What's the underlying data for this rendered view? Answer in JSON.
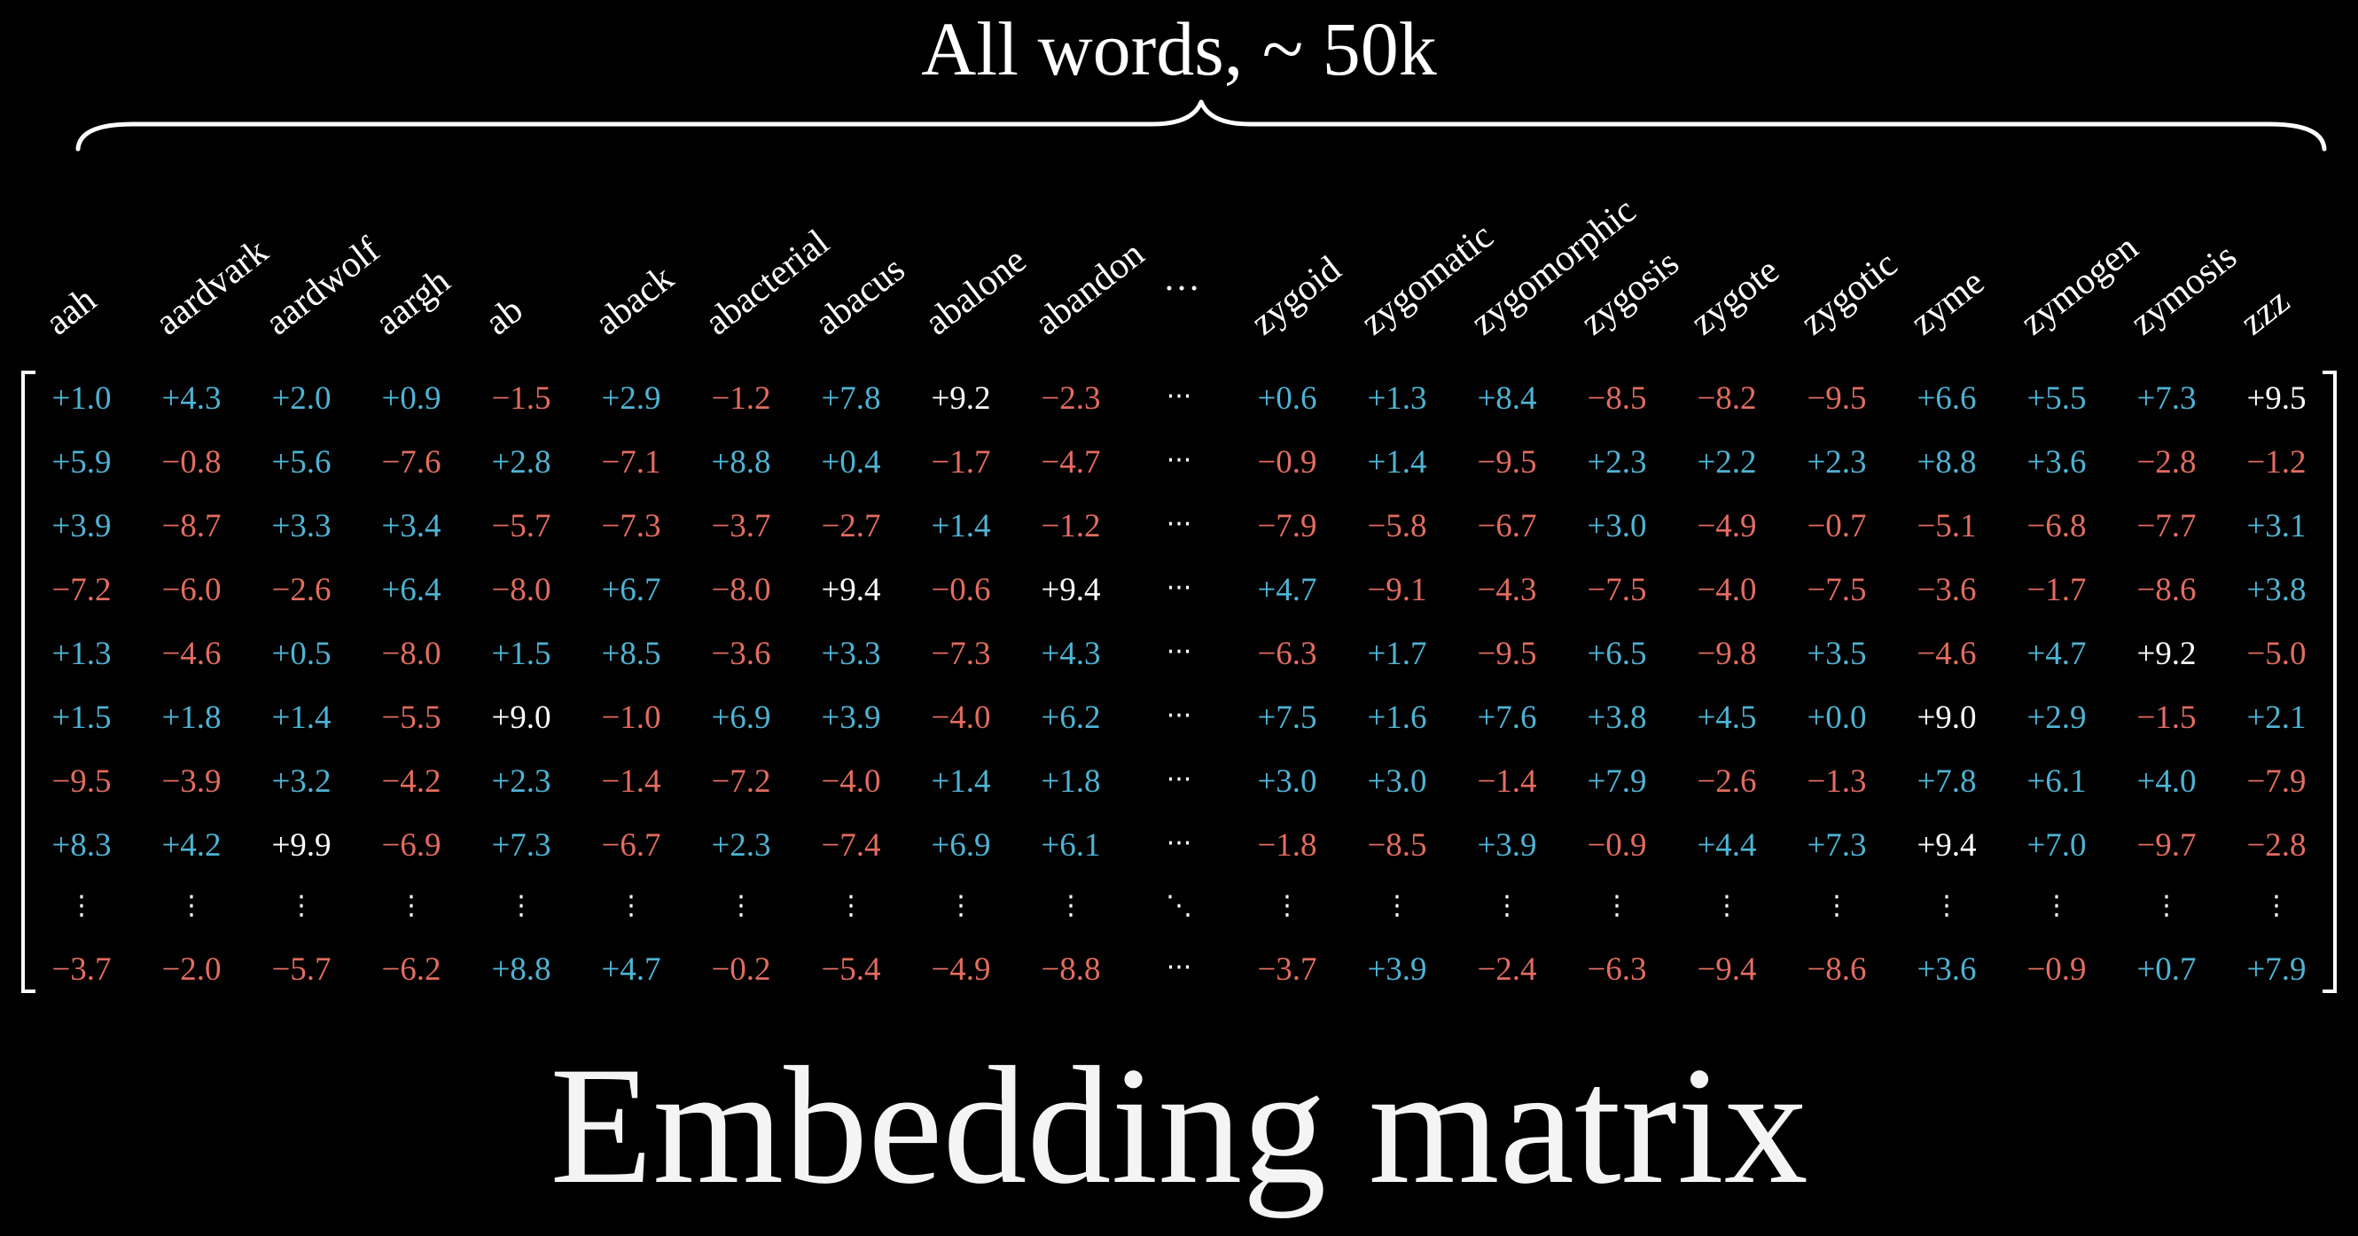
{
  "title": "All words,  ~ 50k",
  "caption": "Embedding matrix",
  "colors": {
    "positive": "#4fb3d3",
    "negative": "#e26c60",
    "neutral": "#ffffff"
  },
  "words_left": [
    "aah",
    "aardvark",
    "aardwolf",
    "aargh",
    "ab",
    "aback",
    "abacterial",
    "abacus",
    "abalone",
    "abandon"
  ],
  "header_ellipsis": "…",
  "words_right": [
    "zygoid",
    "zygomatic",
    "zygomorphic",
    "zygosis",
    "zygote",
    "zygotic",
    "zyme",
    "zymogen",
    "zymosis",
    "zzz"
  ],
  "ellipsis_symbols": {
    "horizontal": "···",
    "vertical": "⋮",
    "diagonal": "⋱"
  },
  "rows": [
    {
      "left": [
        "+1.0",
        "+4.3",
        "+2.0",
        "+0.9",
        "−1.5",
        "+2.9",
        "−1.2",
        "+7.8",
        "+9.2",
        "−2.3"
      ],
      "right": [
        "+0.6",
        "+1.3",
        "+8.4",
        "−8.5",
        "−8.2",
        "−9.5",
        "+6.6",
        "+5.5",
        "+7.3",
        "+9.5"
      ]
    },
    {
      "left": [
        "+5.9",
        "−0.8",
        "+5.6",
        "−7.6",
        "+2.8",
        "−7.1",
        "+8.8",
        "+0.4",
        "−1.7",
        "−4.7"
      ],
      "right": [
        "−0.9",
        "+1.4",
        "−9.5",
        "+2.3",
        "+2.2",
        "+2.3",
        "+8.8",
        "+3.6",
        "−2.8",
        "−1.2"
      ]
    },
    {
      "left": [
        "+3.9",
        "−8.7",
        "+3.3",
        "+3.4",
        "−5.7",
        "−7.3",
        "−3.7",
        "−2.7",
        "+1.4",
        "−1.2"
      ],
      "right": [
        "−7.9",
        "−5.8",
        "−6.7",
        "+3.0",
        "−4.9",
        "−0.7",
        "−5.1",
        "−6.8",
        "−7.7",
        "+3.1"
      ]
    },
    {
      "left": [
        "−7.2",
        "−6.0",
        "−2.6",
        "+6.4",
        "−8.0",
        "+6.7",
        "−8.0",
        "+9.4",
        "−0.6",
        "+9.4"
      ],
      "right": [
        "+4.7",
        "−9.1",
        "−4.3",
        "−7.5",
        "−4.0",
        "−7.5",
        "−3.6",
        "−1.7",
        "−8.6",
        "+3.8"
      ]
    },
    {
      "left": [
        "+1.3",
        "−4.6",
        "+0.5",
        "−8.0",
        "+1.5",
        "+8.5",
        "−3.6",
        "+3.3",
        "−7.3",
        "+4.3"
      ],
      "right": [
        "−6.3",
        "+1.7",
        "−9.5",
        "+6.5",
        "−9.8",
        "+3.5",
        "−4.6",
        "+4.7",
        "+9.2",
        "−5.0"
      ]
    },
    {
      "left": [
        "+1.5",
        "+1.8",
        "+1.4",
        "−5.5",
        "+9.0",
        "−1.0",
        "+6.9",
        "+3.9",
        "−4.0",
        "+6.2"
      ],
      "right": [
        "+7.5",
        "+1.6",
        "+7.6",
        "+3.8",
        "+4.5",
        "+0.0",
        "+9.0",
        "+2.9",
        "−1.5",
        "+2.1"
      ]
    },
    {
      "left": [
        "−9.5",
        "−3.9",
        "+3.2",
        "−4.2",
        "+2.3",
        "−1.4",
        "−7.2",
        "−4.0",
        "+1.4",
        "+1.8"
      ],
      "right": [
        "+3.0",
        "+3.0",
        "−1.4",
        "+7.9",
        "−2.6",
        "−1.3",
        "+7.8",
        "+6.1",
        "+4.0",
        "−7.9"
      ]
    },
    {
      "left": [
        "+8.3",
        "+4.2",
        "+9.9",
        "−6.9",
        "+7.3",
        "−6.7",
        "+2.3",
        "−7.4",
        "+6.9",
        "+6.1"
      ],
      "right": [
        "−1.8",
        "−8.5",
        "+3.9",
        "−0.9",
        "+4.4",
        "+7.3",
        "+9.4",
        "+7.0",
        "−9.7",
        "−2.8"
      ]
    },
    {
      "left": [
        "−3.7",
        "−2.0",
        "−5.7",
        "−6.2",
        "+8.8",
        "+4.7",
        "−0.2",
        "−5.4",
        "−4.9",
        "−8.8"
      ],
      "right": [
        "−3.7",
        "+3.9",
        "−2.4",
        "−6.3",
        "−9.4",
        "−8.6",
        "+3.6",
        "−0.9",
        "+0.7",
        "+7.9"
      ]
    }
  ]
}
